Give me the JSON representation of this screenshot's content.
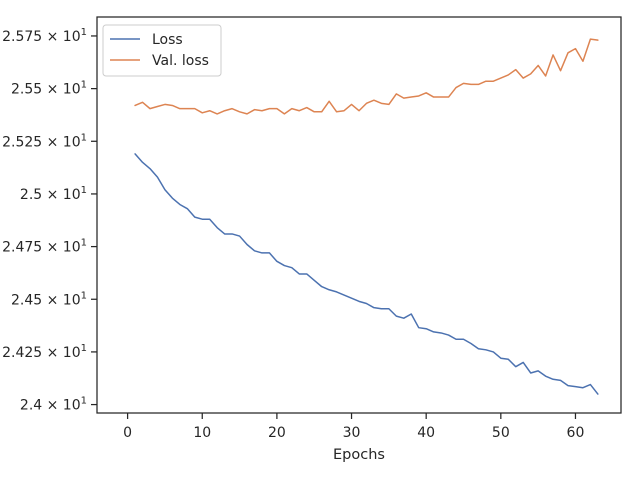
{
  "chart_data": {
    "type": "line",
    "xlabel": "Epochs",
    "ylabel": "",
    "xlim": [
      -4.1,
      66.1
    ],
    "ylim": [
      23.96,
      25.84
    ],
    "xticks": [
      0,
      10,
      20,
      30,
      40,
      50,
      60
    ],
    "xtick_labels": [
      "0",
      "10",
      "20",
      "30",
      "40",
      "50",
      "60"
    ],
    "yticks": [
      24.0,
      24.25,
      24.5,
      24.75,
      25.0,
      25.25,
      25.5,
      25.75
    ],
    "ytick_labels": [
      {
        "mantissa": "2.4",
        "exp": "1"
      },
      {
        "mantissa": "2.425",
        "exp": "1"
      },
      {
        "mantissa": "2.45",
        "exp": "1"
      },
      {
        "mantissa": "2.475",
        "exp": "1"
      },
      {
        "mantissa": "2.5",
        "exp": "1"
      },
      {
        "mantissa": "2.525",
        "exp": "1"
      },
      {
        "mantissa": "2.55",
        "exp": "1"
      },
      {
        "mantissa": "2.575",
        "exp": "1"
      }
    ],
    "grid": false,
    "legend_position": "top-left",
    "x": [
      1,
      2,
      3,
      4,
      5,
      6,
      7,
      8,
      9,
      10,
      11,
      12,
      13,
      14,
      15,
      16,
      17,
      18,
      19,
      20,
      21,
      22,
      23,
      24,
      25,
      26,
      27,
      28,
      29,
      30,
      31,
      32,
      33,
      34,
      35,
      36,
      37,
      38,
      39,
      40,
      41,
      42,
      43,
      44,
      45,
      46,
      47,
      48,
      49,
      50,
      51,
      52,
      53,
      54,
      55,
      56,
      57,
      58,
      59,
      60,
      61,
      62,
      63
    ],
    "series": [
      {
        "name": "Loss",
        "color": "#4c72b0",
        "values": [
          25.19,
          25.15,
          25.12,
          25.08,
          25.02,
          24.98,
          24.95,
          24.93,
          24.89,
          24.88,
          24.88,
          24.84,
          24.81,
          24.81,
          24.8,
          24.76,
          24.73,
          24.72,
          24.72,
          24.68,
          24.66,
          24.65,
          24.62,
          24.62,
          24.59,
          24.56,
          24.545,
          24.535,
          24.52,
          24.505,
          24.49,
          24.48,
          24.46,
          24.455,
          24.455,
          24.42,
          24.41,
          24.43,
          24.365,
          24.36,
          24.345,
          24.34,
          24.33,
          24.31,
          24.31,
          24.29,
          24.265,
          24.26,
          24.25,
          24.22,
          24.215,
          24.18,
          24.2,
          24.15,
          24.16,
          24.135,
          24.12,
          24.115,
          24.09,
          24.085,
          24.08,
          24.095,
          24.05
        ]
      },
      {
        "name": "Val. loss",
        "color": "#dd8452",
        "values": [
          25.42,
          25.435,
          25.405,
          25.415,
          25.425,
          25.42,
          25.405,
          25.405,
          25.405,
          25.385,
          25.395,
          25.38,
          25.395,
          25.405,
          25.39,
          25.38,
          25.4,
          25.395,
          25.405,
          25.405,
          25.38,
          25.405,
          25.395,
          25.41,
          25.39,
          25.39,
          25.44,
          25.39,
          25.395,
          25.425,
          25.395,
          25.43,
          25.445,
          25.43,
          25.425,
          25.475,
          25.455,
          25.46,
          25.465,
          25.48,
          25.46,
          25.46,
          25.46,
          25.505,
          25.525,
          25.52,
          25.52,
          25.535,
          25.535,
          25.55,
          25.565,
          25.59,
          25.55,
          25.57,
          25.61,
          25.56,
          25.66,
          25.585,
          25.67,
          25.69,
          25.63,
          25.735,
          25.73
        ]
      }
    ]
  }
}
